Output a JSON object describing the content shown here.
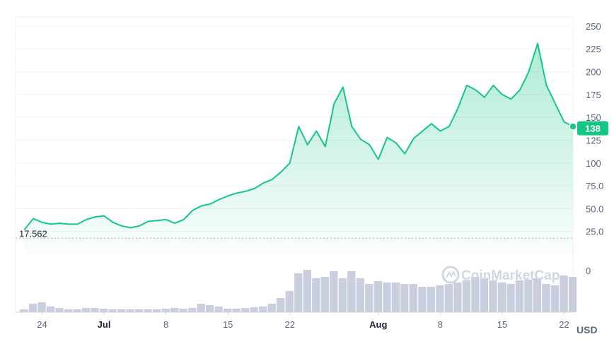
{
  "watermark": "CoinMarketCap",
  "currency": "USD",
  "colors": {
    "up": "#16c784",
    "grid": "#eff2f5",
    "volume": "#c9cfdf",
    "text": "#58667e"
  },
  "chart_data": {
    "type": "area",
    "title": "",
    "xlabel": "",
    "ylabel": "",
    "currency_label": "USD",
    "ylim": [
      0,
      260
    ],
    "yticks": [
      "250",
      "225",
      "200",
      "175",
      "150",
      "125",
      "100",
      "75.0",
      "50.0",
      "25.0"
    ],
    "yticks_values": [
      250,
      225,
      200,
      175,
      150,
      125,
      100,
      75,
      50,
      25
    ],
    "volume_tick": "0",
    "current_price_label": "138",
    "current_price": 138,
    "baseline_label": "17.562",
    "baseline_value": 17.562,
    "x_domain": [
      "2021-06-21",
      "2021-08-23"
    ],
    "xticks": [
      {
        "label": "24",
        "date": "2021-06-24",
        "bold": false
      },
      {
        "label": "Jul",
        "date": "2021-07-01",
        "bold": true
      },
      {
        "label": "8",
        "date": "2021-07-08",
        "bold": false
      },
      {
        "label": "15",
        "date": "2021-07-15",
        "bold": false
      },
      {
        "label": "22",
        "date": "2021-07-22",
        "bold": false
      },
      {
        "label": "Aug",
        "date": "2021-08-01",
        "bold": true
      },
      {
        "label": "8",
        "date": "2021-08-08",
        "bold": false
      },
      {
        "label": "15",
        "date": "2021-08-15",
        "bold": false
      },
      {
        "label": "22",
        "date": "2021-08-22",
        "bold": false
      }
    ],
    "series": [
      {
        "x": [
          "2021-06-22",
          "2021-06-23",
          "2021-06-24",
          "2021-06-25",
          "2021-06-26",
          "2021-06-27",
          "2021-06-28",
          "2021-06-29",
          "2021-06-30",
          "2021-07-01",
          "2021-07-02",
          "2021-07-03",
          "2021-07-04",
          "2021-07-05",
          "2021-07-06",
          "2021-07-07",
          "2021-07-08",
          "2021-07-09",
          "2021-07-10",
          "2021-07-11",
          "2021-07-12",
          "2021-07-13",
          "2021-07-14",
          "2021-07-15",
          "2021-07-16",
          "2021-07-17",
          "2021-07-18",
          "2021-07-19",
          "2021-07-20",
          "2021-07-21",
          "2021-07-22",
          "2021-07-23",
          "2021-07-24",
          "2021-07-25",
          "2021-07-26",
          "2021-07-27",
          "2021-07-28",
          "2021-07-29",
          "2021-07-30",
          "2021-07-31",
          "2021-08-01",
          "2021-08-02",
          "2021-08-03",
          "2021-08-04",
          "2021-08-05",
          "2021-08-06",
          "2021-08-07",
          "2021-08-08",
          "2021-08-09",
          "2021-08-10",
          "2021-08-11",
          "2021-08-12",
          "2021-08-13",
          "2021-08-14",
          "2021-08-15",
          "2021-08-16",
          "2021-08-17",
          "2021-08-18",
          "2021-08-19",
          "2021-08-20",
          "2021-08-21",
          "2021-08-22",
          "2021-08-23"
        ],
        "values": [
          27,
          39,
          35,
          33,
          34,
          33,
          33,
          38,
          41,
          42,
          35,
          31,
          29,
          31,
          36,
          37,
          38,
          34,
          38,
          48,
          53,
          55,
          60,
          64,
          67,
          69,
          72,
          78,
          82,
          90,
          100,
          140,
          120,
          135,
          118,
          165,
          183,
          140,
          126,
          120,
          104,
          128,
          122,
          110,
          127,
          135,
          143,
          135,
          140,
          160,
          185,
          180,
          172,
          185,
          175,
          170,
          180,
          200,
          231,
          185,
          165,
          145,
          140
        ],
        "volume": [
          4,
          12,
          14,
          8,
          6,
          4,
          4,
          6,
          6,
          5,
          4,
          4,
          4,
          4,
          4,
          4,
          5,
          6,
          5,
          6,
          12,
          10,
          8,
          5,
          5,
          6,
          7,
          8,
          12,
          20,
          30,
          55,
          60,
          48,
          50,
          58,
          48,
          58,
          48,
          40,
          44,
          42,
          42,
          40,
          40,
          36,
          36,
          38,
          40,
          42,
          45,
          50,
          48,
          45,
          42,
          40,
          45,
          46,
          48,
          40,
          38,
          52,
          50
        ]
      }
    ]
  }
}
